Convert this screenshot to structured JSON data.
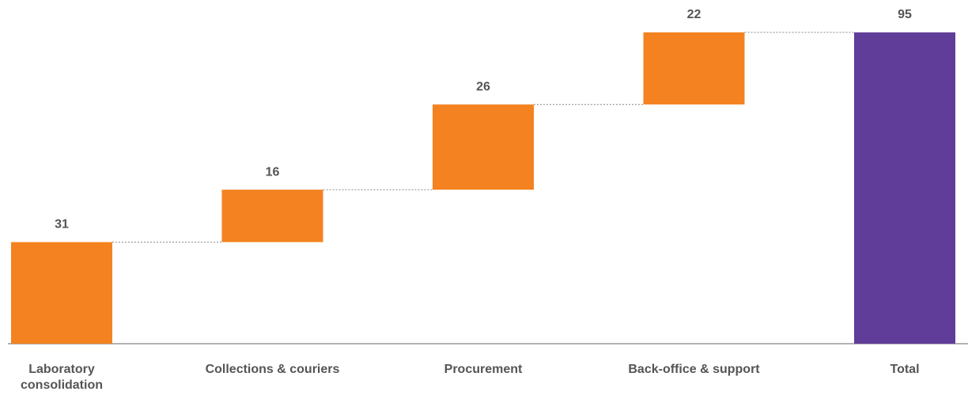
{
  "chart_data": {
    "type": "waterfall",
    "categories": [
      "Laboratory consolidation",
      "Collections & couriers",
      "Procurement",
      "Back-office & support",
      "Total"
    ],
    "values": [
      31,
      16,
      26,
      22,
      95
    ],
    "totals": [
      false,
      false,
      false,
      false,
      true
    ],
    "colors": [
      "#f48220",
      "#f48220",
      "#f48220",
      "#f48220",
      "#5f3d99"
    ]
  }
}
